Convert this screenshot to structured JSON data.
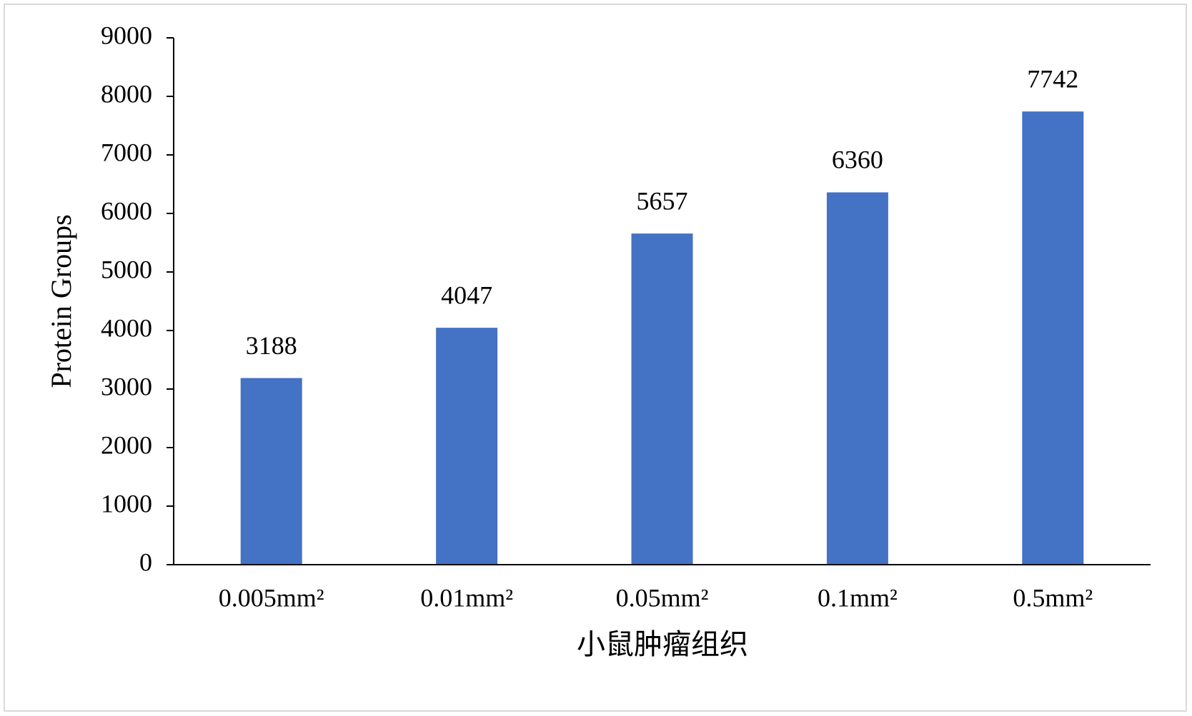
{
  "chart_data": {
    "type": "bar",
    "categories": [
      "0.005mm²",
      "0.01mm²",
      "0.05mm²",
      "0.1mm²",
      "0.5mm²"
    ],
    "values": [
      3188,
      4047,
      5657,
      6360,
      7742
    ],
    "color": "#4472c4",
    "x_label": "小鼠肿瘤组织",
    "y_label": "Protein Groups",
    "ylim": [
      0,
      9000
    ],
    "yticks": [
      0,
      1000,
      2000,
      3000,
      4000,
      5000,
      6000,
      7000,
      8000,
      9000
    ],
    "grid": false
  }
}
